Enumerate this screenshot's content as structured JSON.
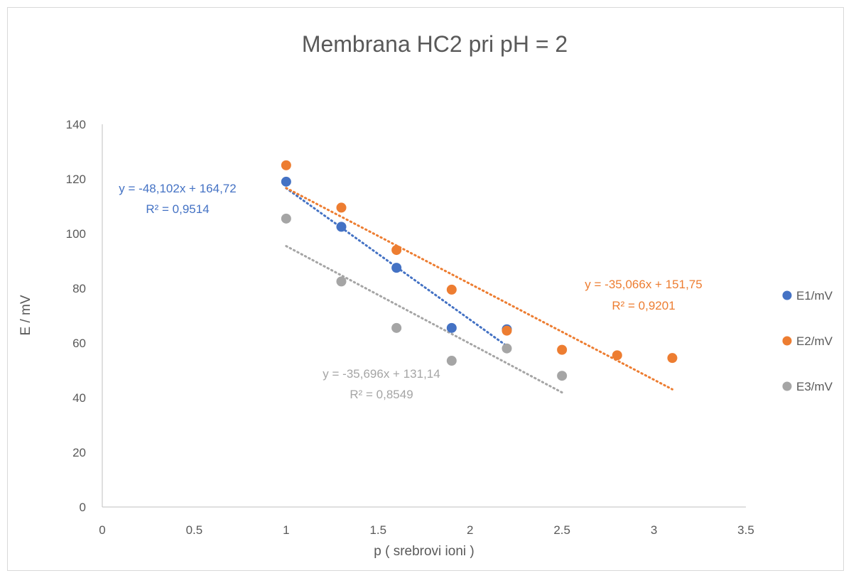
{
  "chart_data": {
    "type": "scatter",
    "title": "Membrana HC2 pri pH = 2",
    "xlabel": "p ( srebrovi ioni )",
    "ylabel": "E / mV",
    "xlim": [
      0,
      3.5
    ],
    "ylim": [
      0,
      140
    ],
    "x_ticks": [
      "0",
      "0.5",
      "1",
      "1.5",
      "2",
      "2.5",
      "3",
      "3.5"
    ],
    "y_ticks": [
      "0",
      "20",
      "40",
      "60",
      "80",
      "100",
      "120",
      "140"
    ],
    "grid": false,
    "legend_position": "right",
    "series": [
      {
        "name": "E1/mV",
        "color": "#4472c4",
        "x": [
          1.0,
          1.3,
          1.6,
          1.9,
          2.2
        ],
        "y": [
          119,
          102.5,
          87.5,
          65.5,
          65
        ],
        "trendline": {
          "slope": -48.102,
          "intercept": 164.72,
          "x_range": [
            1.0,
            2.2
          ],
          "equation": "y = -48,102x + 164,72",
          "r2": "R² = 0,9514"
        }
      },
      {
        "name": "E2/mV",
        "color": "#ed7d31",
        "x": [
          1.0,
          1.3,
          1.6,
          1.9,
          2.2,
          2.5,
          2.8,
          3.1
        ],
        "y": [
          125,
          109.5,
          94,
          79.5,
          64.5,
          57.5,
          55.5,
          54.5
        ],
        "trendline": {
          "slope": -35.066,
          "intercept": 151.75,
          "x_range": [
            1.0,
            3.1
          ],
          "equation": "y = -35,066x + 151,75",
          "r2": "R² = 0,9201"
        }
      },
      {
        "name": "E3/mV",
        "color": "#a5a5a5",
        "x": [
          1.0,
          1.3,
          1.6,
          1.9,
          2.2,
          2.5
        ],
        "y": [
          105.5,
          82.5,
          65.5,
          53.5,
          58,
          48
        ],
        "trendline": {
          "slope": -35.696,
          "intercept": 131.14,
          "x_range": [
            1.0,
            2.5
          ],
          "equation": "y = -35,696x + 131,14",
          "r2": "R² = 0,8549"
        }
      }
    ]
  }
}
